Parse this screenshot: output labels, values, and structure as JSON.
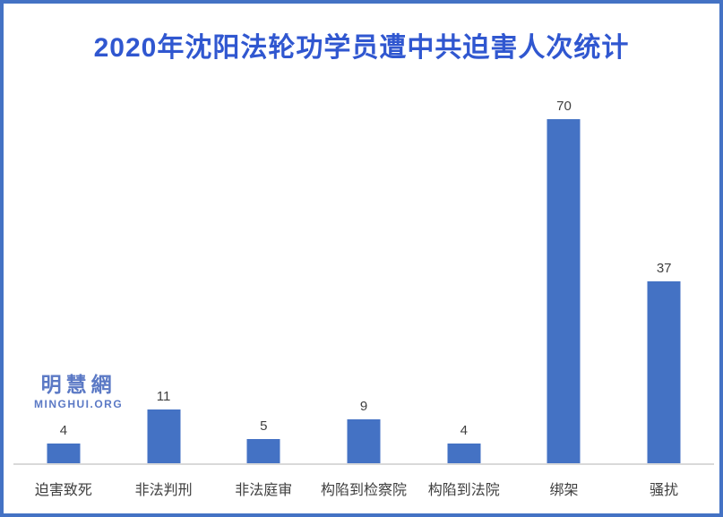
{
  "title": "2020年沈阳法轮功学员遭中共迫害人次统计",
  "watermark": {
    "cn": "明慧網",
    "en": "MINGHUI.ORG"
  },
  "colors": {
    "bar": "#4472c4",
    "frame_border": "#4472c4",
    "title_text": "#3057d0",
    "axis_line": "#d9d9d9",
    "label_text": "#404040",
    "watermark_text": "#5b79c5"
  },
  "chart_data": {
    "type": "bar",
    "title": "2020年沈阳法轮功学员遭中共迫害人次统计",
    "categories": [
      "迫害致死",
      "非法判刑",
      "非法庭审",
      "构陷到检察院",
      "构陷到法院",
      "绑架",
      "骚扰"
    ],
    "values": [
      4,
      11,
      5,
      9,
      4,
      70,
      37
    ],
    "xlabel": "",
    "ylabel": "",
    "ylim": [
      0,
      70
    ],
    "grid": false,
    "legend": "none",
    "value_labels": "above-bars"
  }
}
